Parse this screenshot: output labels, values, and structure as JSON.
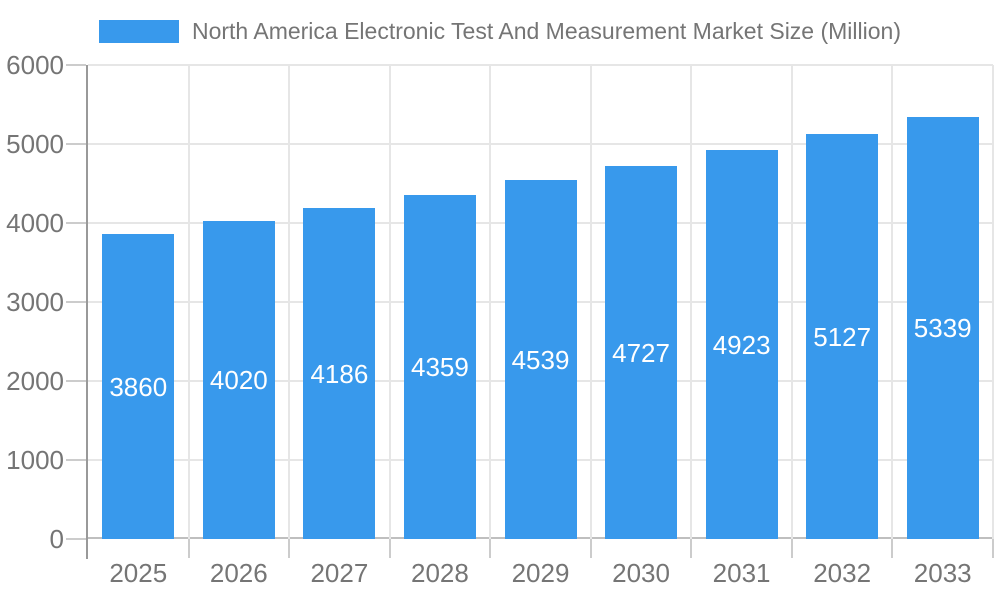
{
  "chart_data": {
    "type": "bar",
    "title": "North America Electronic Test And Measurement Market Size (Million)",
    "categories": [
      "2025",
      "2026",
      "2027",
      "2028",
      "2029",
      "2030",
      "2031",
      "2032",
      "2033"
    ],
    "values": [
      3860,
      4020,
      4186,
      4359,
      4539,
      4727,
      4923,
      5127,
      5339
    ],
    "xlabel": "",
    "ylabel": "",
    "ylim": [
      0,
      6000
    ],
    "yticks": [
      0,
      1000,
      2000,
      3000,
      4000,
      5000,
      6000
    ],
    "grid": true,
    "legend_position": "top",
    "colors": {
      "bar": "#3899ec",
      "bar_label": "#ffffff",
      "axis_text": "#757575",
      "gridline": "#e6e6e6",
      "axis_line": "#999999",
      "baseline": "#bfbfbf",
      "tick": "#cccccc",
      "background": "#ffffff"
    }
  },
  "legend": {
    "label": "North America Electronic Test And Measurement Market Size (Million)",
    "swatch_color": "#3899ec"
  }
}
